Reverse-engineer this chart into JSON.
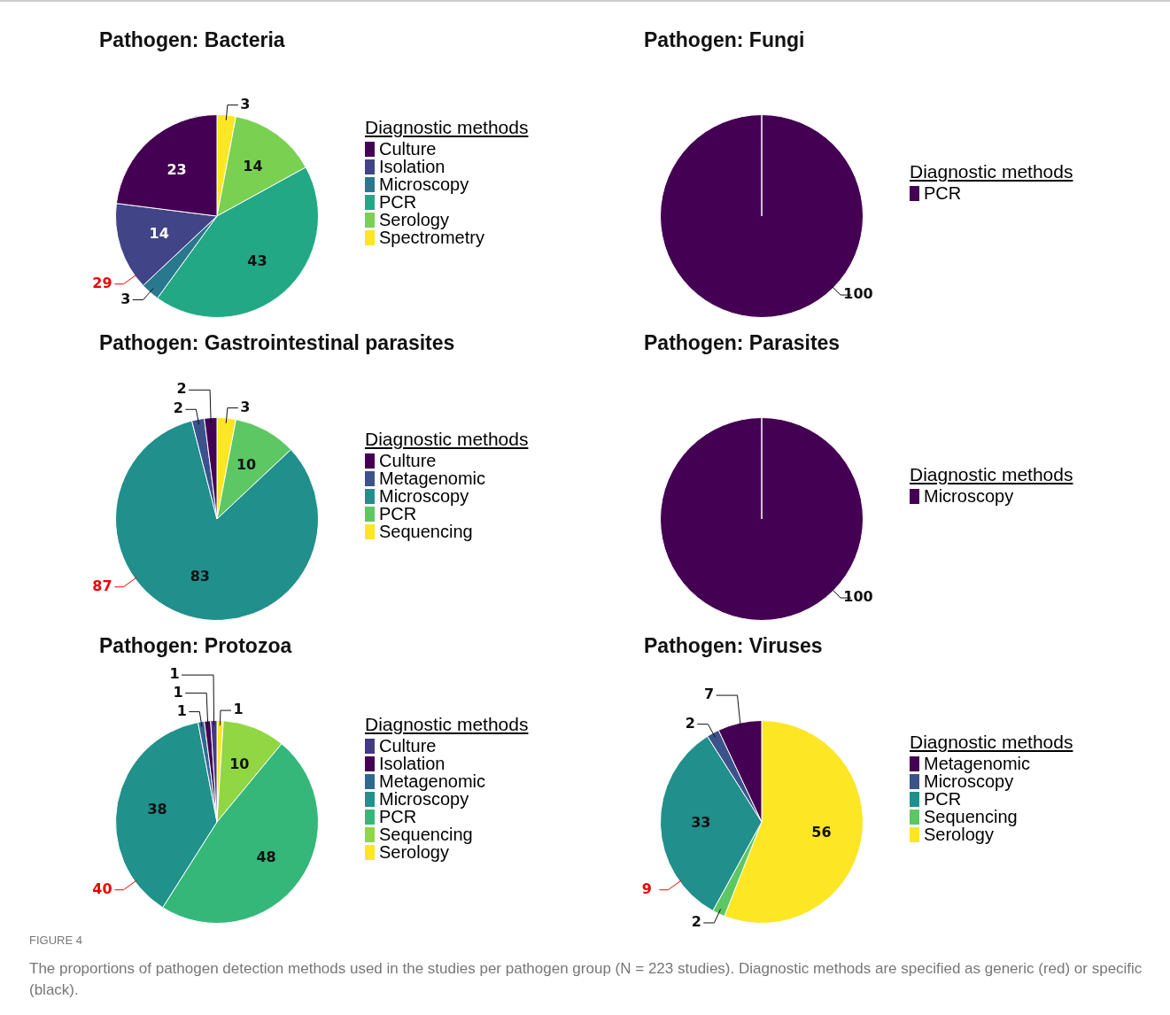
{
  "chart_data": [
    {
      "type": "pie",
      "title": "Pathogen: Bacteria",
      "legend_title": "Diagnostic methods",
      "legend": "right",
      "data_labels": true,
      "categories": [
        "Culture",
        "Isolation",
        "Microscopy",
        "PCR",
        "Serology",
        "Spectrometry"
      ],
      "values": [
        23,
        14,
        3,
        43,
        14,
        3
      ],
      "colors": [
        "#440154",
        "#414487",
        "#2a788e",
        "#22a884",
        "#7ad151",
        "#fde725"
      ],
      "annotations": [
        "29"
      ]
    },
    {
      "type": "pie",
      "title": "Pathogen: Fungi",
      "legend_title": "Diagnostic methods",
      "legend": "right",
      "data_labels": true,
      "categories": [
        "PCR"
      ],
      "values": [
        100
      ],
      "colors": [
        "#440154"
      ]
    },
    {
      "type": "pie",
      "title": "Pathogen: Gastrointestinal parasites",
      "legend_title": "Diagnostic methods",
      "legend": "right",
      "data_labels": true,
      "categories": [
        "Culture",
        "Metagenomic",
        "Microscopy",
        "PCR",
        "Sequencing"
      ],
      "values": [
        2,
        2,
        83,
        10,
        3
      ],
      "colors": [
        "#440154",
        "#3b528b",
        "#21908c",
        "#5dc863",
        "#fde725"
      ],
      "annotations": [
        "87"
      ]
    },
    {
      "type": "pie",
      "title": "Pathogen: Parasites",
      "legend_title": "Diagnostic methods",
      "legend": "right",
      "data_labels": true,
      "categories": [
        "Microscopy"
      ],
      "values": [
        100
      ],
      "colors": [
        "#440154"
      ]
    },
    {
      "type": "pie",
      "title": "Pathogen: Protozoa",
      "legend_title": "Diagnostic methods",
      "legend": "right",
      "data_labels": true,
      "categories": [
        "Culture",
        "Isolation",
        "Metagenomic",
        "Microscopy",
        "PCR",
        "Sequencing",
        "Serology"
      ],
      "values": [
        1,
        1,
        1,
        38,
        48,
        10,
        1
      ],
      "colors": [
        "#443983",
        "#440154",
        "#31688e",
        "#21918c",
        "#35b779",
        "#90d743",
        "#fde725"
      ],
      "annotations": [
        "40"
      ]
    },
    {
      "type": "pie",
      "title": "Pathogen: Viruses",
      "legend_title": "Diagnostic methods",
      "legend": "right",
      "data_labels": true,
      "categories": [
        "Metagenomic",
        "Microscopy",
        "PCR",
        "Sequencing",
        "Serology"
      ],
      "values": [
        7,
        2,
        33,
        2,
        56
      ],
      "colors": [
        "#440154",
        "#3b528b",
        "#21908c",
        "#5dc863",
        "#fde725"
      ],
      "annotations": [
        "9"
      ]
    },
    {
      "type": "other",
      "annotations": [
        "FIGURE 4",
        "The proportions of pathogen detection methods used in the studies per pathogen group (N = 223 studies). Diagnostic methods are specified as generic (red) or specific (black)."
      ]
    }
  ]
}
